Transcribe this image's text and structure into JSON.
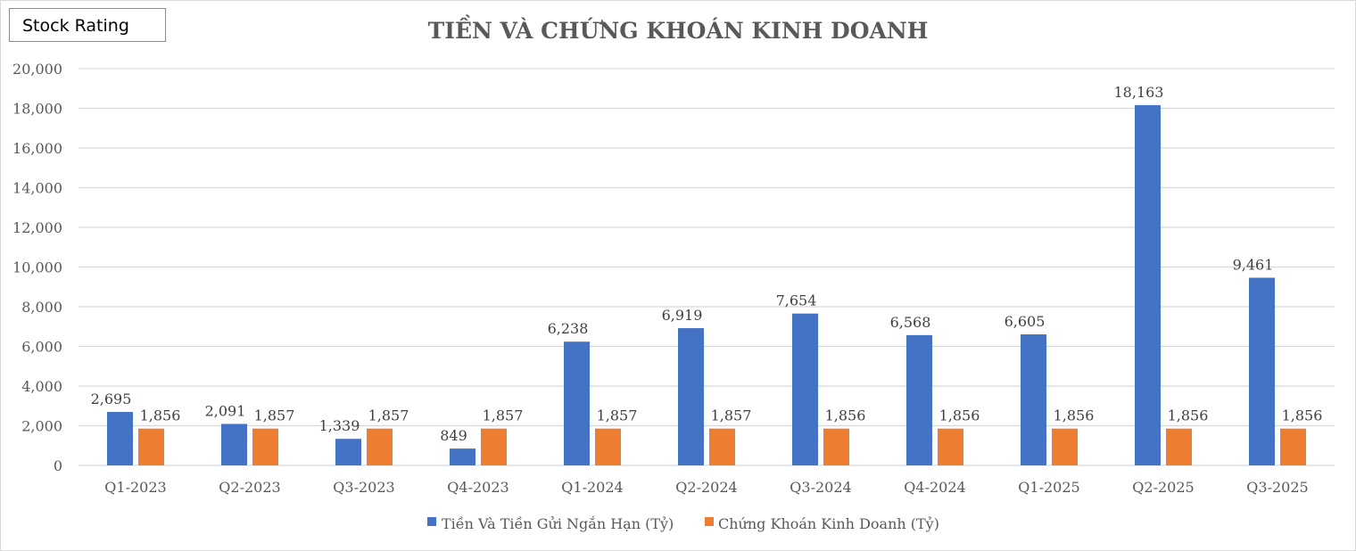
{
  "badge": {
    "label": "Stock Rating"
  },
  "chart_data": {
    "type": "bar",
    "title": "TIỀN VÀ CHỨNG KHOÁN KINH DOANH",
    "categories": [
      "Q1-2023",
      "Q2-2023",
      "Q3-2023",
      "Q4-2023",
      "Q1-2024",
      "Q2-2024",
      "Q3-2024",
      "Q4-2024",
      "Q1-2025",
      "Q2-2025",
      "Q3-2025"
    ],
    "series": [
      {
        "name": "Tiền Và Tiền Gửi Ngắn Hạn (Tỷ)",
        "color": "#4472C4",
        "values": [
          2695,
          2091,
          1339,
          849,
          6238,
          6919,
          7654,
          6568,
          6605,
          18163,
          9461
        ]
      },
      {
        "name": "Chứng Khoán Kinh Doanh (Tỷ)",
        "color": "#ED7D31",
        "values": [
          1856,
          1857,
          1857,
          1857,
          1857,
          1857,
          1856,
          1856,
          1856,
          1856,
          1856
        ]
      }
    ],
    "ylim": [
      0,
      20000
    ],
    "yticks": [
      0,
      2000,
      4000,
      6000,
      8000,
      10000,
      12000,
      14000,
      16000,
      18000,
      20000
    ],
    "grid": true,
    "legend": "bottom"
  }
}
